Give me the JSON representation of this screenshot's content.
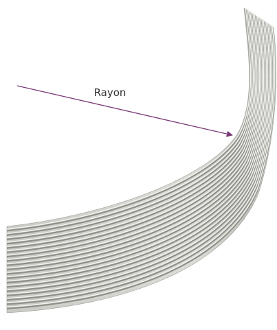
{
  "label": "Rayon"
}
